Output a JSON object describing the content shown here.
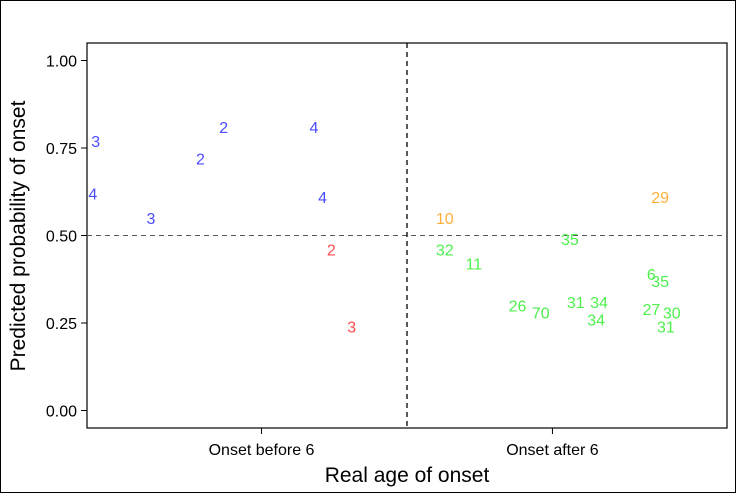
{
  "chart_data": {
    "type": "scatter",
    "xlabel": "Real age of onset",
    "ylabel": "Predicted probability of onset",
    "categories": [
      "Onset before 6",
      "Onset after 6"
    ],
    "ylim": [
      -0.05,
      1.05
    ],
    "yticks": [
      "0.00",
      "0.25",
      "0.50",
      "0.75",
      "1.00"
    ],
    "reference_lines": {
      "horizontal": 0.5,
      "vertical_between_categories": true
    },
    "colors": {
      "blue": "#4b4bff",
      "red": "#ff4b4b",
      "orange": "#ffb13a",
      "green": "#4ef04e"
    },
    "points": [
      {
        "group": "Onset before 6",
        "x": 0.43,
        "y": 0.77,
        "label": "3",
        "color": "blue"
      },
      {
        "group": "Onset before 6",
        "x": 0.42,
        "y": 0.62,
        "label": "4",
        "color": "blue"
      },
      {
        "group": "Onset before 6",
        "x": 0.62,
        "y": 0.55,
        "label": "3",
        "color": "blue"
      },
      {
        "group": "Onset before 6",
        "x": 0.79,
        "y": 0.72,
        "label": "2",
        "color": "blue"
      },
      {
        "group": "Onset before 6",
        "x": 0.87,
        "y": 0.81,
        "label": "2",
        "color": "blue"
      },
      {
        "group": "Onset before 6",
        "x": 1.18,
        "y": 0.81,
        "label": "4",
        "color": "blue"
      },
      {
        "group": "Onset before 6",
        "x": 1.21,
        "y": 0.61,
        "label": "4",
        "color": "blue"
      },
      {
        "group": "Onset before 6",
        "x": 1.24,
        "y": 0.46,
        "label": "2",
        "color": "red"
      },
      {
        "group": "Onset before 6",
        "x": 1.31,
        "y": 0.24,
        "label": "3",
        "color": "red"
      },
      {
        "group": "Onset after 6",
        "x": 1.63,
        "y": 0.55,
        "label": "10",
        "color": "orange"
      },
      {
        "group": "Onset after 6",
        "x": 1.63,
        "y": 0.46,
        "label": "32",
        "color": "green"
      },
      {
        "group": "Onset after 6",
        "x": 1.73,
        "y": 0.42,
        "label": "11",
        "color": "green"
      },
      {
        "group": "Onset after 6",
        "x": 2.06,
        "y": 0.49,
        "label": "35",
        "color": "green"
      },
      {
        "group": "Onset after 6",
        "x": 1.88,
        "y": 0.3,
        "label": "26",
        "color": "green"
      },
      {
        "group": "Onset after 6",
        "x": 1.96,
        "y": 0.28,
        "label": "70",
        "color": "green"
      },
      {
        "group": "Onset after 6",
        "x": 2.08,
        "y": 0.31,
        "label": "31",
        "color": "green"
      },
      {
        "group": "Onset after 6",
        "x": 2.16,
        "y": 0.31,
        "label": "34",
        "color": "green"
      },
      {
        "group": "Onset after 6",
        "x": 2.15,
        "y": 0.26,
        "label": "34",
        "color": "green"
      },
      {
        "group": "Onset after 6",
        "x": 2.37,
        "y": 0.61,
        "label": "29",
        "color": "orange"
      },
      {
        "group": "Onset after 6",
        "x": 2.34,
        "y": 0.39,
        "label": "6",
        "color": "green"
      },
      {
        "group": "Onset after 6",
        "x": 2.37,
        "y": 0.37,
        "label": "35",
        "color": "green"
      },
      {
        "group": "Onset after 6",
        "x": 2.34,
        "y": 0.29,
        "label": "27",
        "color": "green"
      },
      {
        "group": "Onset after 6",
        "x": 2.41,
        "y": 0.28,
        "label": "30",
        "color": "green"
      },
      {
        "group": "Onset after 6",
        "x": 2.39,
        "y": 0.24,
        "label": "31",
        "color": "green"
      }
    ]
  }
}
